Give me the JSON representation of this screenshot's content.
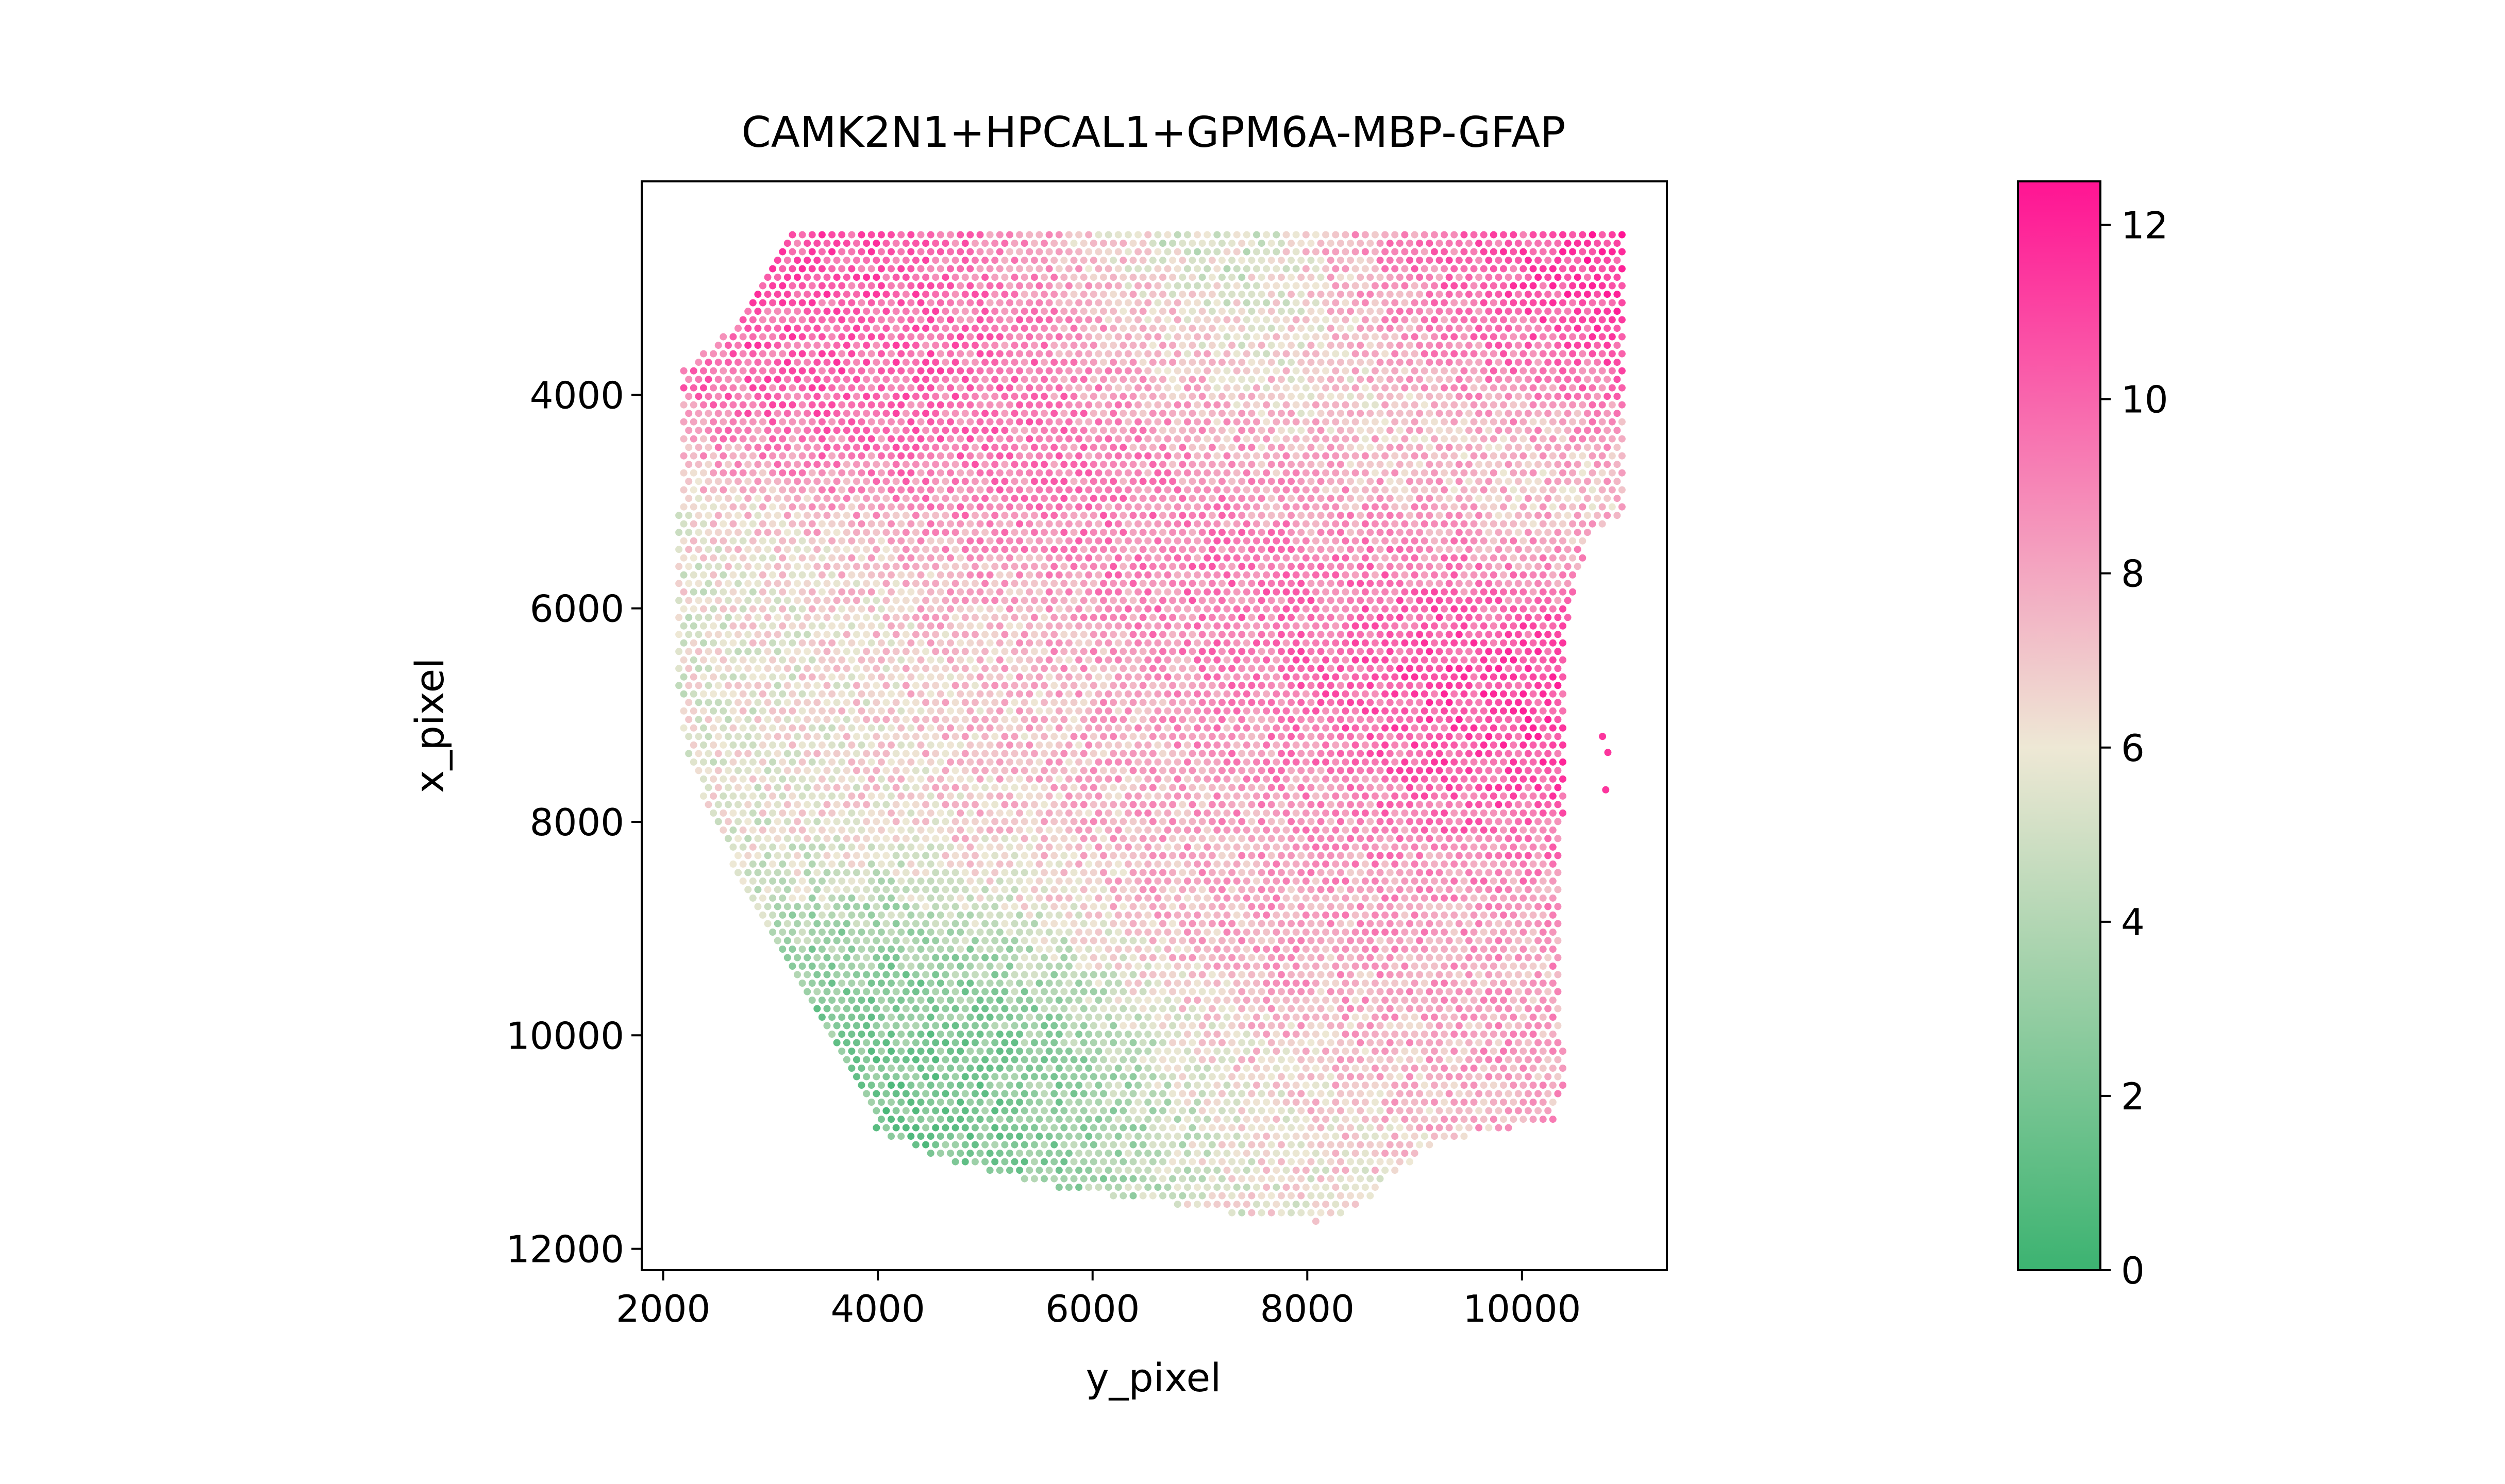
{
  "chart_data": {
    "type": "scatter",
    "title": "CAMK2N1+HPCAL1+GPM6A-MBP-GFAP",
    "xlabel": "y_pixel",
    "ylabel": "x_pixel",
    "xlim": [
      1800,
      11350
    ],
    "ylim": [
      12200,
      2000
    ],
    "y_inverted": true,
    "grid": false,
    "x_ticks": [
      2000,
      4000,
      6000,
      8000,
      10000
    ],
    "y_ticks": [
      4000,
      6000,
      8000,
      10000,
      12000
    ],
    "colorbar": {
      "min": 0,
      "max": 12.5,
      "ticks": [
        0,
        2,
        4,
        6,
        8,
        10,
        12
      ],
      "colors": [
        "#3cb371",
        "#eee8d5",
        "#ff1493"
      ]
    },
    "spot_spacing_data_units": 92,
    "tissue_outline": [
      [
        3150,
        2500
      ],
      [
        10950,
        2500
      ],
      [
        10950,
        5150
      ],
      [
        10650,
        5250
      ],
      [
        10500,
        5800
      ],
      [
        10400,
        6400
      ],
      [
        10400,
        7700
      ],
      [
        10350,
        8500
      ],
      [
        10350,
        9500
      ],
      [
        10400,
        10500
      ],
      [
        10300,
        10800
      ],
      [
        9700,
        10900
      ],
      [
        9200,
        11000
      ],
      [
        8800,
        11300
      ],
      [
        8500,
        11600
      ],
      [
        8100,
        11750
      ],
      [
        7500,
        11700
      ],
      [
        6500,
        11550
      ],
      [
        5500,
        11400
      ],
      [
        4700,
        11200
      ],
      [
        4000,
        10900
      ],
      [
        3400,
        9700
      ],
      [
        2900,
        8900
      ],
      [
        2450,
        8000
      ],
      [
        2200,
        7300
      ],
      [
        2100,
        6500
      ],
      [
        2150,
        5000
      ],
      [
        2150,
        3800
      ],
      [
        2500,
        3500
      ],
      [
        2800,
        3200
      ],
      [
        3150,
        2500
      ]
    ],
    "value_field": [
      {
        "x": 3700,
        "y": 3200,
        "v": 10.5,
        "r": 900
      },
      {
        "x": 4800,
        "y": 3700,
        "v": 10.0,
        "r": 1000
      },
      {
        "x": 6200,
        "y": 4200,
        "v": 10.5,
        "r": 1000
      },
      {
        "x": 7400,
        "y": 5000,
        "v": 10.8,
        "r": 900
      },
      {
        "x": 8600,
        "y": 5800,
        "v": 10.5,
        "r": 1000
      },
      {
        "x": 9400,
        "y": 6700,
        "v": 11.2,
        "r": 900
      },
      {
        "x": 10000,
        "y": 7200,
        "v": 11.0,
        "r": 700
      },
      {
        "x": 9900,
        "y": 3300,
        "v": 11.5,
        "r": 900
      },
      {
        "x": 8800,
        "y": 2800,
        "v": 10.5,
        "r": 700
      },
      {
        "x": 7200,
        "y": 3100,
        "v": 3.5,
        "r": 1200
      },
      {
        "x": 8200,
        "y": 4300,
        "v": 4.5,
        "r": 1000
      },
      {
        "x": 9900,
        "y": 4800,
        "v": 5.5,
        "r": 700
      },
      {
        "x": 4800,
        "y": 10300,
        "v": 1.5,
        "r": 1000
      },
      {
        "x": 5800,
        "y": 10800,
        "v": 3.0,
        "r": 800
      },
      {
        "x": 3700,
        "y": 9600,
        "v": 2.5,
        "r": 600
      },
      {
        "x": 3000,
        "y": 7000,
        "v": 5.5,
        "r": 1300
      },
      {
        "x": 5000,
        "y": 6800,
        "v": 7.5,
        "r": 1300
      },
      {
        "x": 7500,
        "y": 8500,
        "v": 8.0,
        "r": 1400
      },
      {
        "x": 9600,
        "y": 9300,
        "v": 8.0,
        "r": 1000
      },
      {
        "x": 7600,
        "y": 11200,
        "v": 6.0,
        "r": 900
      }
    ],
    "outlier_spots": [
      [
        10750,
        7200
      ],
      [
        10800,
        7350
      ],
      [
        10780,
        7700
      ]
    ]
  }
}
